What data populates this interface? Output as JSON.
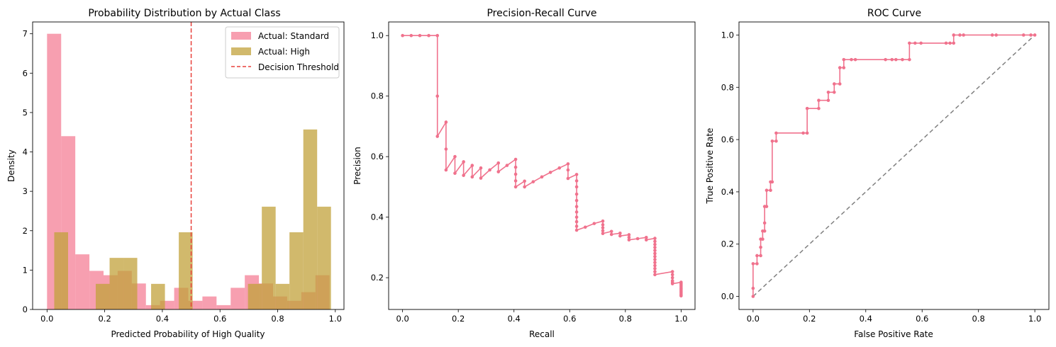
{
  "chart_data": [
    {
      "type": "histogram",
      "title": "Probability Distribution by Actual Class",
      "xlabel": "Predicted Probability of High Quality",
      "ylabel": "Density",
      "xlim": [
        -0.05,
        1.03
      ],
      "ylim": [
        0,
        7.3
      ],
      "xticks": [
        "0.0",
        "0.2",
        "0.4",
        "0.6",
        "0.8",
        "1.0"
      ],
      "xtick_values": [
        0,
        0.2,
        0.4,
        0.6,
        0.8,
        1.0
      ],
      "yticks": [
        "0",
        "1",
        "2",
        "3",
        "4",
        "5",
        "6",
        "7"
      ],
      "ytick_values": [
        0,
        1,
        2,
        3,
        4,
        5,
        6,
        7
      ],
      "legend_position": "top-right",
      "series": [
        {
          "name": "Actual: Standard",
          "color": "#f47a91",
          "opacity": 0.72,
          "bins": [
            {
              "x0": 0.0,
              "x1": 0.049,
              "density": 7.0
            },
            {
              "x0": 0.049,
              "x1": 0.098,
              "density": 4.4
            },
            {
              "x0": 0.098,
              "x1": 0.147,
              "density": 1.4
            },
            {
              "x0": 0.147,
              "x1": 0.196,
              "density": 0.98
            },
            {
              "x0": 0.196,
              "x1": 0.245,
              "density": 0.87
            },
            {
              "x0": 0.245,
              "x1": 0.294,
              "density": 0.98
            },
            {
              "x0": 0.294,
              "x1": 0.343,
              "density": 0.66
            },
            {
              "x0": 0.343,
              "x1": 0.392,
              "density": 0.11
            },
            {
              "x0": 0.392,
              "x1": 0.441,
              "density": 0.22
            },
            {
              "x0": 0.441,
              "x1": 0.49,
              "density": 0.55
            },
            {
              "x0": 0.49,
              "x1": 0.539,
              "density": 0.22
            },
            {
              "x0": 0.539,
              "x1": 0.588,
              "density": 0.33
            },
            {
              "x0": 0.588,
              "x1": 0.637,
              "density": 0.11
            },
            {
              "x0": 0.637,
              "x1": 0.686,
              "density": 0.55
            },
            {
              "x0": 0.686,
              "x1": 0.735,
              "density": 0.87
            },
            {
              "x0": 0.735,
              "x1": 0.784,
              "density": 0.66
            },
            {
              "x0": 0.784,
              "x1": 0.833,
              "density": 0.33
            },
            {
              "x0": 0.833,
              "x1": 0.882,
              "density": 0.22
            },
            {
              "x0": 0.882,
              "x1": 0.931,
              "density": 0.44
            },
            {
              "x0": 0.931,
              "x1": 0.98,
              "density": 0.87
            }
          ]
        },
        {
          "name": "Actual: High",
          "color": "#c1a13b",
          "opacity": 0.75,
          "bins": [
            {
              "x0": 0.025,
              "x1": 0.073,
              "density": 1.96
            },
            {
              "x0": 0.073,
              "x1": 0.121,
              "density": 0
            },
            {
              "x0": 0.121,
              "x1": 0.169,
              "density": 0
            },
            {
              "x0": 0.169,
              "x1": 0.217,
              "density": 0.65
            },
            {
              "x0": 0.217,
              "x1": 0.265,
              "density": 1.31
            },
            {
              "x0": 0.265,
              "x1": 0.313,
              "density": 1.31
            },
            {
              "x0": 0.313,
              "x1": 0.361,
              "density": 0
            },
            {
              "x0": 0.361,
              "x1": 0.409,
              "density": 0.65
            },
            {
              "x0": 0.409,
              "x1": 0.457,
              "density": 0
            },
            {
              "x0": 0.457,
              "x1": 0.505,
              "density": 1.96
            },
            {
              "x0": 0.505,
              "x1": 0.553,
              "density": 0
            },
            {
              "x0": 0.553,
              "x1": 0.601,
              "density": 0
            },
            {
              "x0": 0.601,
              "x1": 0.649,
              "density": 0
            },
            {
              "x0": 0.649,
              "x1": 0.697,
              "density": 0
            },
            {
              "x0": 0.697,
              "x1": 0.745,
              "density": 0.65
            },
            {
              "x0": 0.745,
              "x1": 0.793,
              "density": 2.61
            },
            {
              "x0": 0.793,
              "x1": 0.841,
              "density": 0.65
            },
            {
              "x0": 0.841,
              "x1": 0.889,
              "density": 1.96
            },
            {
              "x0": 0.889,
              "x1": 0.937,
              "density": 4.57
            },
            {
              "x0": 0.937,
              "x1": 0.985,
              "density": 2.61
            }
          ]
        }
      ],
      "threshold": {
        "name": "Decision Threshold",
        "x": 0.5,
        "color": "#e8413c"
      }
    },
    {
      "type": "line",
      "title": "Precision-Recall Curve",
      "xlabel": "Recall",
      "ylabel": "Precision",
      "xlim": [
        -0.05,
        1.05
      ],
      "ylim": [
        0.095,
        1.045
      ],
      "xticks": [
        "0.0",
        "0.2",
        "0.4",
        "0.6",
        "0.8",
        "1.0"
      ],
      "xtick_values": [
        0,
        0.2,
        0.4,
        0.6,
        0.8,
        1.0
      ],
      "yticks": [
        "0.2",
        "0.4",
        "0.6",
        "0.8",
        "1.0"
      ],
      "ytick_values": [
        0.2,
        0.4,
        0.6,
        0.8,
        1.0
      ],
      "color": "#f0728d",
      "points": [
        [
          0.0,
          1.0
        ],
        [
          0.031,
          1.0
        ],
        [
          0.062,
          1.0
        ],
        [
          0.094,
          1.0
        ],
        [
          0.125,
          1.0
        ],
        [
          0.125,
          0.8
        ],
        [
          0.125,
          0.667
        ],
        [
          0.156,
          0.714
        ],
        [
          0.156,
          0.625
        ],
        [
          0.156,
          0.556
        ],
        [
          0.188,
          0.6
        ],
        [
          0.188,
          0.545
        ],
        [
          0.219,
          0.583
        ],
        [
          0.219,
          0.538
        ],
        [
          0.25,
          0.571
        ],
        [
          0.25,
          0.533
        ],
        [
          0.281,
          0.5625
        ],
        [
          0.281,
          0.529
        ],
        [
          0.313,
          0.556
        ],
        [
          0.344,
          0.579
        ],
        [
          0.344,
          0.55
        ],
        [
          0.375,
          0.571
        ],
        [
          0.406,
          0.591
        ],
        [
          0.406,
          0.565
        ],
        [
          0.406,
          0.542
        ],
        [
          0.406,
          0.52
        ],
        [
          0.406,
          0.5
        ],
        [
          0.438,
          0.519
        ],
        [
          0.438,
          0.5
        ],
        [
          0.469,
          0.517
        ],
        [
          0.5,
          0.533
        ],
        [
          0.531,
          0.548
        ],
        [
          0.563,
          0.5625
        ],
        [
          0.594,
          0.576
        ],
        [
          0.594,
          0.556
        ],
        [
          0.594,
          0.528
        ],
        [
          0.625,
          0.541
        ],
        [
          0.625,
          0.52
        ],
        [
          0.625,
          0.5
        ],
        [
          0.625,
          0.476
        ],
        [
          0.625,
          0.455
        ],
        [
          0.625,
          0.435
        ],
        [
          0.625,
          0.417
        ],
        [
          0.625,
          0.4
        ],
        [
          0.625,
          0.385
        ],
        [
          0.625,
          0.37
        ],
        [
          0.625,
          0.357
        ],
        [
          0.656,
          0.367
        ],
        [
          0.688,
          0.379
        ],
        [
          0.719,
          0.387
        ],
        [
          0.719,
          0.375
        ],
        [
          0.719,
          0.365
        ],
        [
          0.719,
          0.355
        ],
        [
          0.719,
          0.346
        ],
        [
          0.75,
          0.353
        ],
        [
          0.75,
          0.343
        ],
        [
          0.781,
          0.347
        ],
        [
          0.781,
          0.338
        ],
        [
          0.813,
          0.342
        ],
        [
          0.813,
          0.333
        ],
        [
          0.813,
          0.325
        ],
        [
          0.844,
          0.329
        ],
        [
          0.875,
          0.333
        ],
        [
          0.875,
          0.325
        ],
        [
          0.906,
          0.33
        ],
        [
          0.906,
          0.32
        ],
        [
          0.906,
          0.31
        ],
        [
          0.906,
          0.3
        ],
        [
          0.906,
          0.29
        ],
        [
          0.906,
          0.28
        ],
        [
          0.906,
          0.27
        ],
        [
          0.906,
          0.26
        ],
        [
          0.906,
          0.25
        ],
        [
          0.906,
          0.24
        ],
        [
          0.906,
          0.23
        ],
        [
          0.906,
          0.22
        ],
        [
          0.906,
          0.21
        ],
        [
          0.969,
          0.22
        ],
        [
          0.969,
          0.21
        ],
        [
          0.969,
          0.2
        ],
        [
          0.969,
          0.19
        ],
        [
          0.969,
          0.185
        ],
        [
          0.969,
          0.18
        ],
        [
          1.0,
          0.185
        ],
        [
          1.0,
          0.18
        ],
        [
          1.0,
          0.175
        ],
        [
          1.0,
          0.17
        ],
        [
          1.0,
          0.165
        ],
        [
          1.0,
          0.16
        ],
        [
          1.0,
          0.155
        ],
        [
          1.0,
          0.15
        ],
        [
          1.0,
          0.145
        ],
        [
          1.0,
          0.14
        ]
      ]
    },
    {
      "type": "line",
      "title": "ROC Curve",
      "xlabel": "False Positive Rate",
      "ylabel": "True Positive Rate",
      "xlim": [
        -0.05,
        1.05
      ],
      "ylim": [
        -0.05,
        1.05
      ],
      "xticks": [
        "0.0",
        "0.2",
        "0.4",
        "0.6",
        "0.8",
        "1.0"
      ],
      "xtick_values": [
        0,
        0.2,
        0.4,
        0.6,
        0.8,
        1.0
      ],
      "yticks": [
        "0.0",
        "0.2",
        "0.4",
        "0.6",
        "0.8",
        "1.0"
      ],
      "ytick_values": [
        0,
        0.2,
        0.4,
        0.6,
        0.8,
        1.0
      ],
      "color": "#f0728d",
      "diagonal_color": "#808080",
      "points": [
        [
          0,
          0
        ],
        [
          0,
          0.031
        ],
        [
          0,
          0.125
        ],
        [
          0.014,
          0.125
        ],
        [
          0.014,
          0.156
        ],
        [
          0.027,
          0.156
        ],
        [
          0.027,
          0.188
        ],
        [
          0.027,
          0.219
        ],
        [
          0.034,
          0.219
        ],
        [
          0.034,
          0.25
        ],
        [
          0.041,
          0.25
        ],
        [
          0.041,
          0.281
        ],
        [
          0.041,
          0.344
        ],
        [
          0.048,
          0.344
        ],
        [
          0.048,
          0.406
        ],
        [
          0.062,
          0.406
        ],
        [
          0.062,
          0.438
        ],
        [
          0.068,
          0.438
        ],
        [
          0.068,
          0.594
        ],
        [
          0.082,
          0.594
        ],
        [
          0.082,
          0.625
        ],
        [
          0.178,
          0.625
        ],
        [
          0.192,
          0.625
        ],
        [
          0.192,
          0.719
        ],
        [
          0.233,
          0.719
        ],
        [
          0.233,
          0.75
        ],
        [
          0.267,
          0.75
        ],
        [
          0.267,
          0.781
        ],
        [
          0.288,
          0.781
        ],
        [
          0.288,
          0.813
        ],
        [
          0.308,
          0.813
        ],
        [
          0.308,
          0.875
        ],
        [
          0.322,
          0.875
        ],
        [
          0.322,
          0.906
        ],
        [
          0.349,
          0.906
        ],
        [
          0.363,
          0.906
        ],
        [
          0.47,
          0.906
        ],
        [
          0.493,
          0.906
        ],
        [
          0.507,
          0.906
        ],
        [
          0.53,
          0.906
        ],
        [
          0.555,
          0.906
        ],
        [
          0.555,
          0.969
        ],
        [
          0.575,
          0.969
        ],
        [
          0.596,
          0.969
        ],
        [
          0.685,
          0.969
        ],
        [
          0.699,
          0.969
        ],
        [
          0.712,
          0.969
        ],
        [
          0.712,
          1.0
        ],
        [
          0.734,
          1.0
        ],
        [
          0.747,
          1.0
        ],
        [
          0.849,
          1.0
        ],
        [
          0.863,
          1.0
        ],
        [
          0.96,
          1.0
        ],
        [
          0.986,
          1.0
        ],
        [
          1.0,
          1.0
        ]
      ]
    }
  ]
}
